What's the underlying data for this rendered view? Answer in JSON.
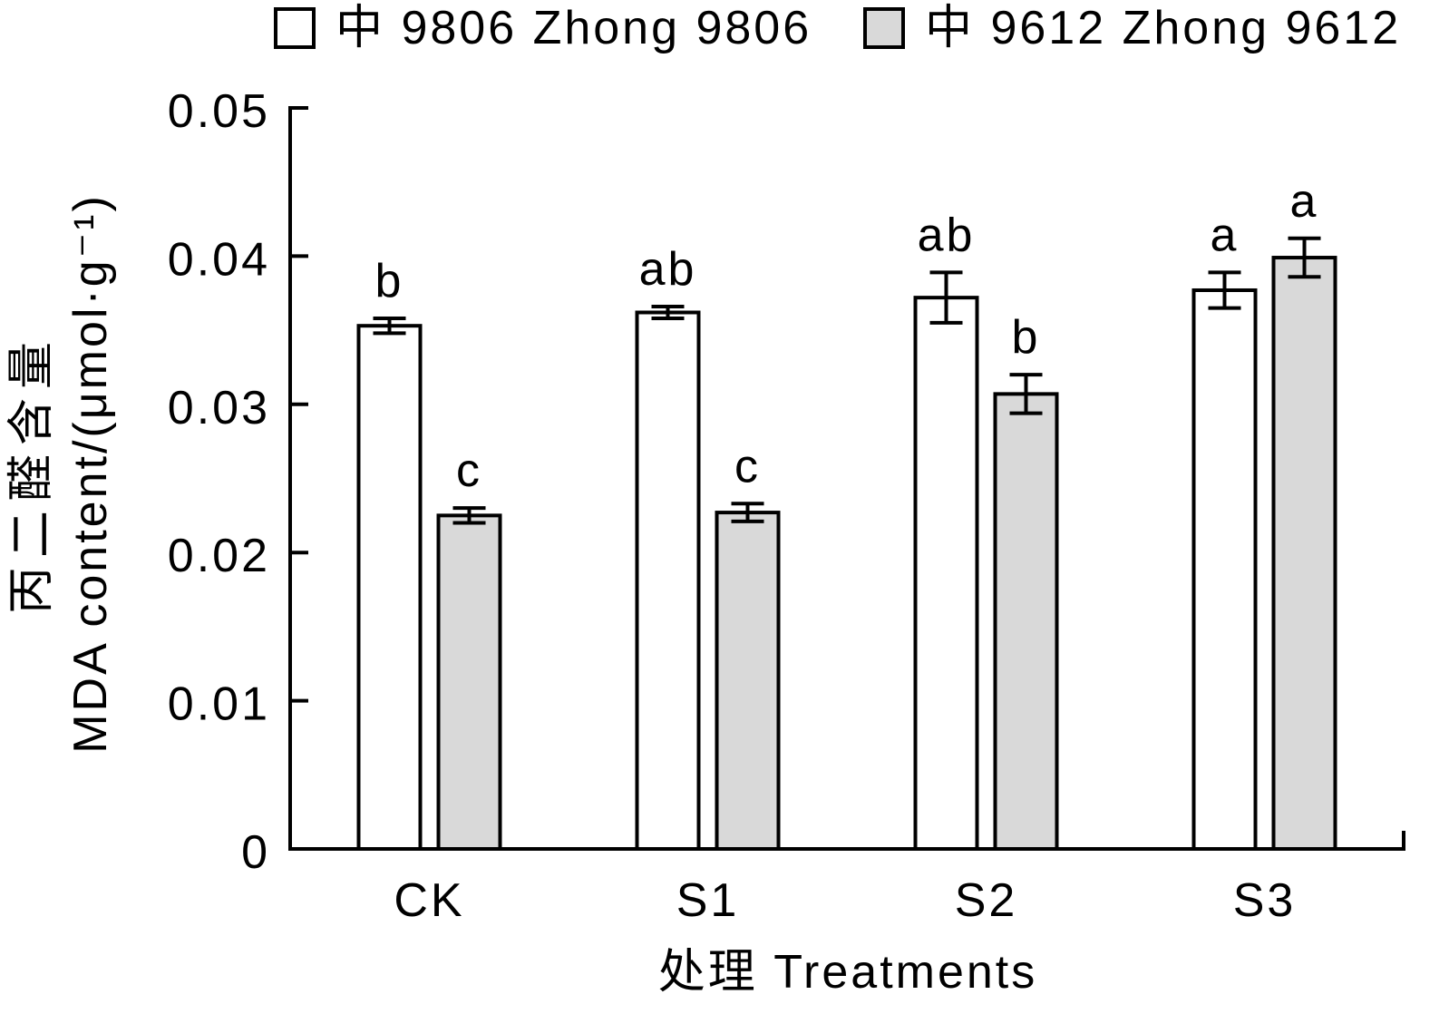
{
  "chart_data": {
    "type": "bar",
    "categories": [
      "CK",
      "S1",
      "S2",
      "S3"
    ],
    "series": [
      {
        "name": "中 9806 Zhong 9806",
        "color": "#ffffff",
        "values": [
          0.0353,
          0.0362,
          0.0372,
          0.0377
        ],
        "errors": [
          0.0005,
          0.0004,
          0.0017,
          0.0012
        ],
        "letters": [
          "b",
          "ab",
          "ab",
          "a"
        ]
      },
      {
        "name": "中 9612 Zhong 9612",
        "color": "#d9d9d9",
        "values": [
          0.0225,
          0.0227,
          0.0307,
          0.0399
        ],
        "errors": [
          0.0005,
          0.0006,
          0.0013,
          0.0013
        ],
        "letters": [
          "c",
          "c",
          "b",
          "a"
        ]
      }
    ],
    "xlabel": "处理 Treatments",
    "ylabel_zh": "丙二醛含量",
    "ylabel": "MDA content/(μmol·g⁻¹)",
    "ylim": [
      0,
      0.05
    ],
    "yticks": [
      0,
      0.01,
      0.02,
      0.03,
      0.04,
      0.05
    ],
    "grid": false,
    "legend_position": "top"
  }
}
